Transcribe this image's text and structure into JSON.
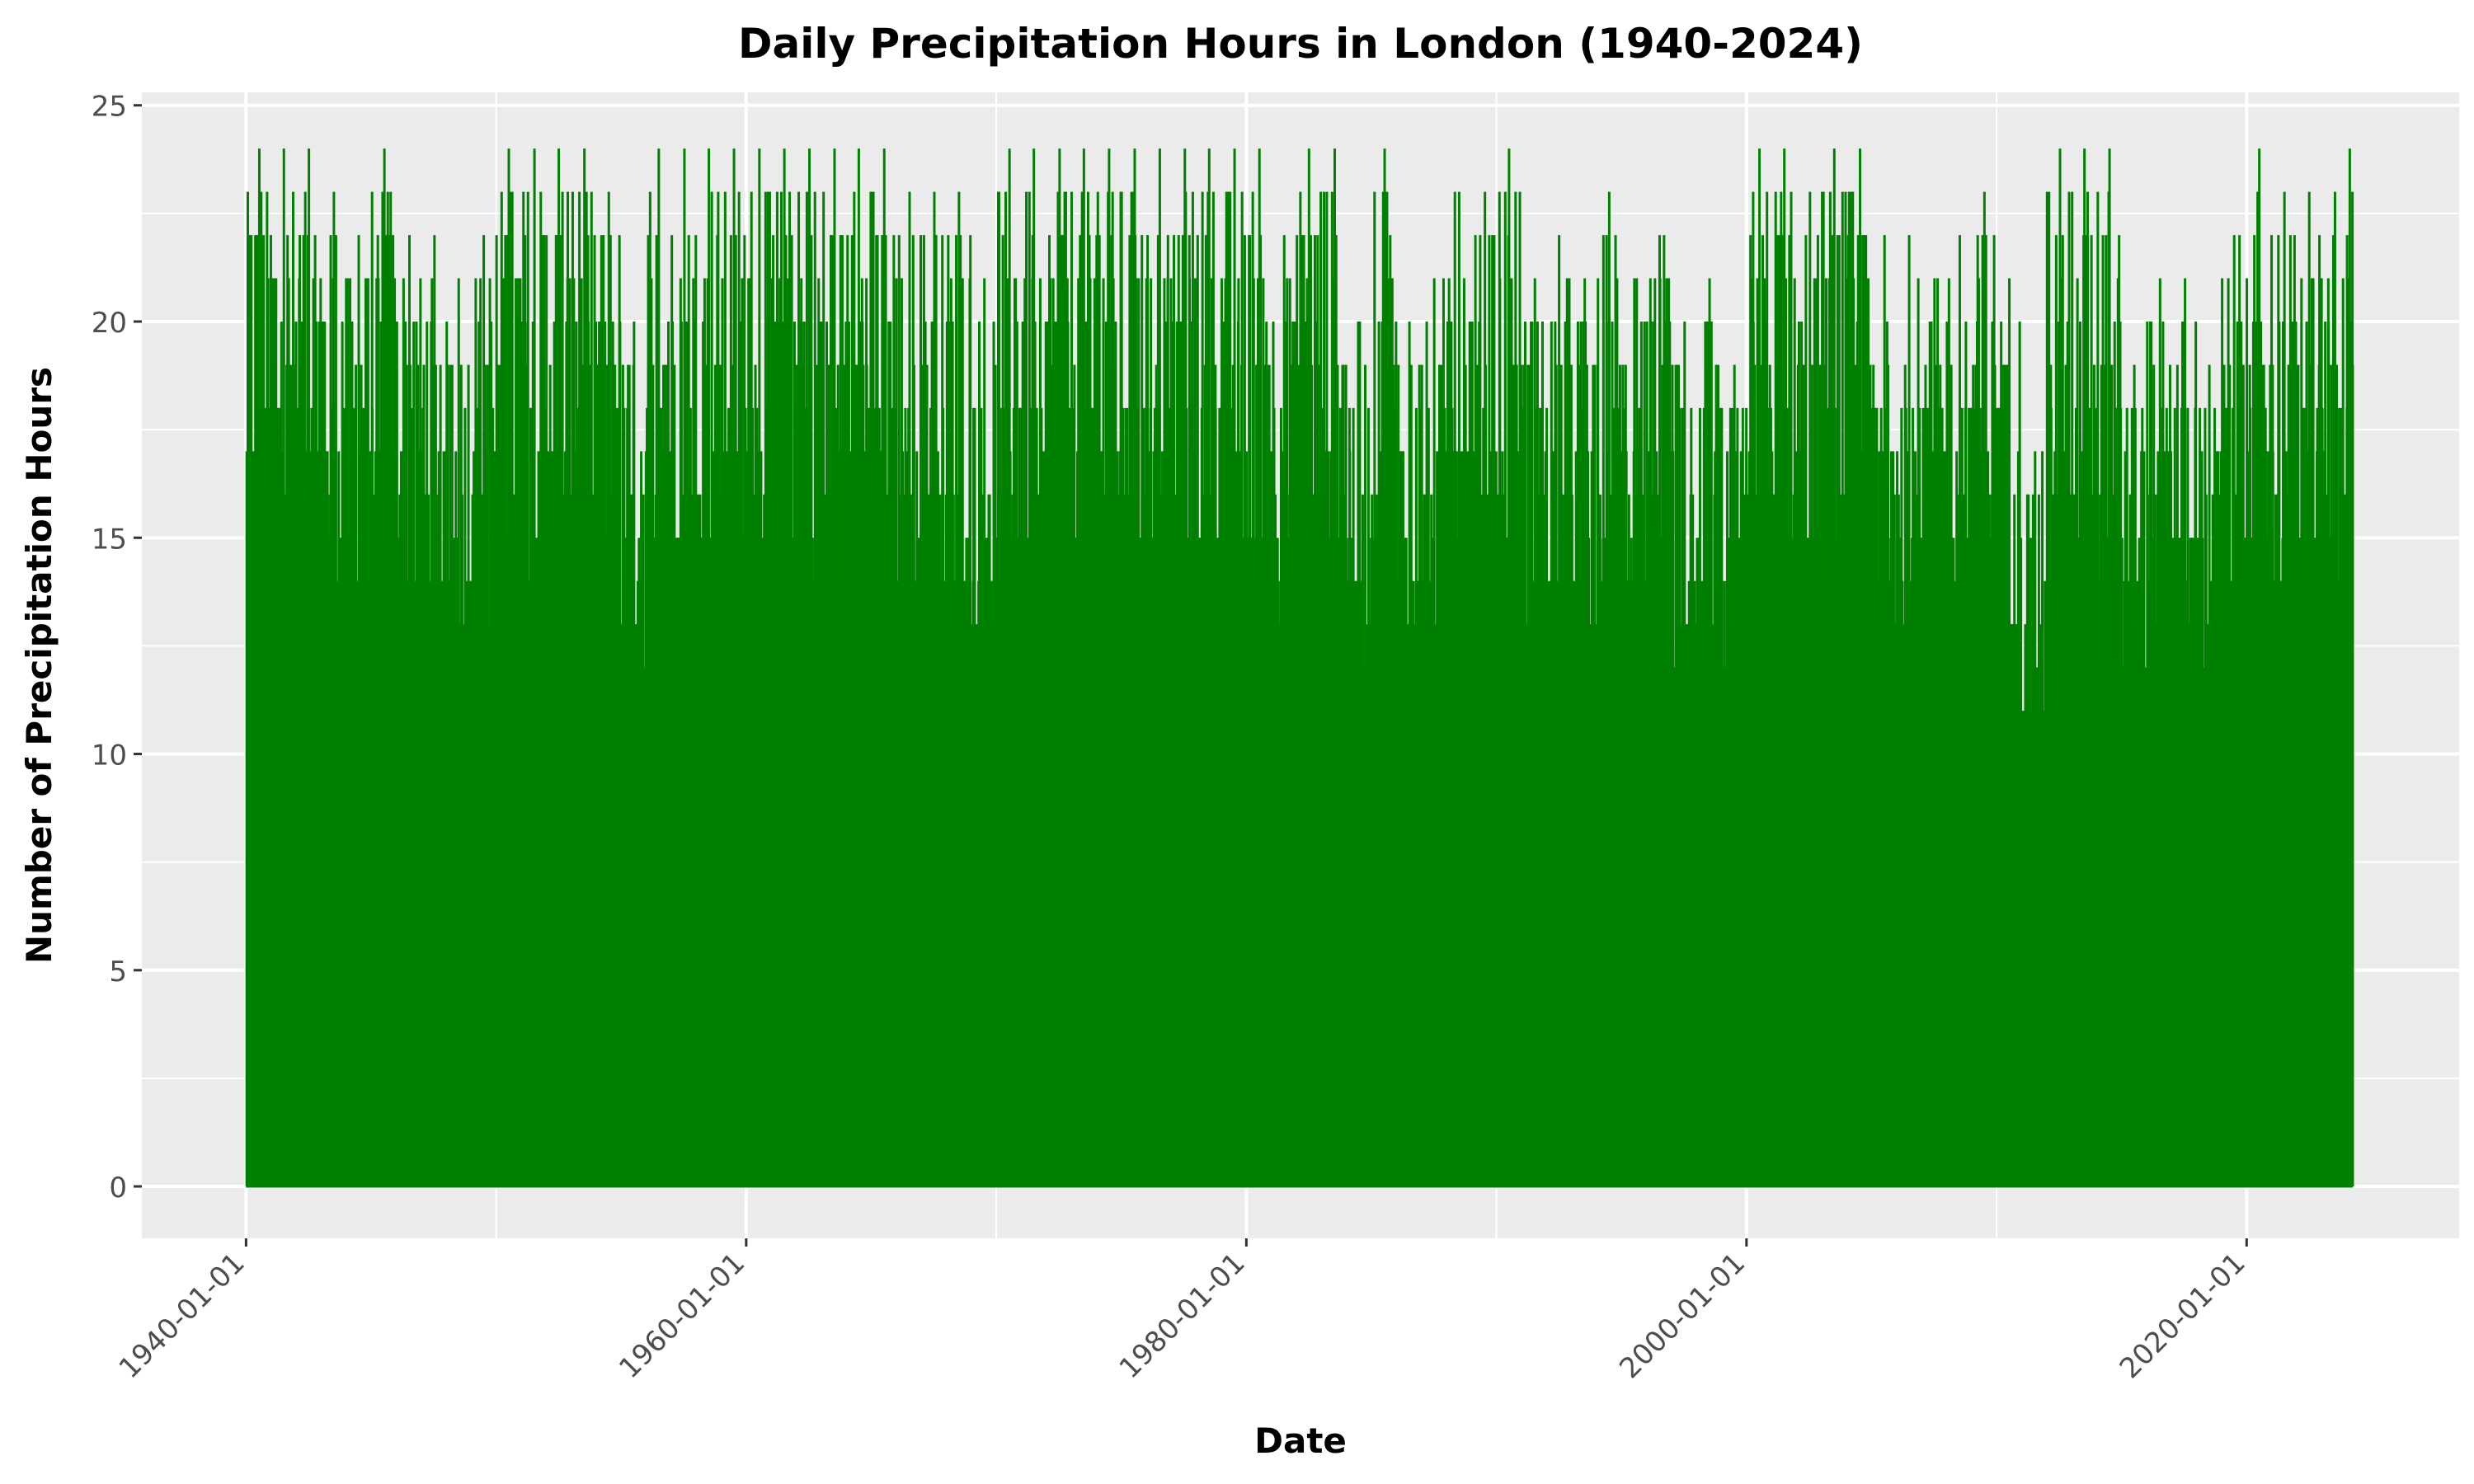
{
  "chart_data": {
    "type": "line",
    "title": "Daily Precipitation Hours in London (1940-2024)",
    "xlabel": "Date",
    "ylabel": "Number of Precipitation Hours",
    "x_range": [
      "1940-01-01",
      "2024-03-31"
    ],
    "xlim": [
      "1935-11-01",
      "2028-07-01"
    ],
    "ylim": [
      -1.2,
      25.3
    ],
    "x_ticks": [
      "1940-01-01",
      "1960-01-01",
      "1980-01-01",
      "2000-01-01",
      "2020-01-01"
    ],
    "y_ticks": [
      0,
      5,
      10,
      15,
      20,
      25
    ],
    "grid": true,
    "legend": "none",
    "colors": {
      "line": "#008000",
      "panel": "#ebebeb",
      "grid": "#ffffff"
    },
    "series": [
      {
        "note_values": "annual maximum daily precipitation hours (upper envelope of the daily series, values 0 to 24)",
        "x": [
          "1940",
          "1941",
          "1942",
          "1943",
          "1944",
          "1945",
          "1946",
          "1947",
          "1948",
          "1949",
          "1950",
          "1951",
          "1952",
          "1953",
          "1954",
          "1955",
          "1956",
          "1957",
          "1958",
          "1959",
          "1960",
          "1961",
          "1962",
          "1963",
          "1964",
          "1965",
          "1966",
          "1967",
          "1968",
          "1969",
          "1970",
          "1971",
          "1972",
          "1973",
          "1974",
          "1975",
          "1976",
          "1977",
          "1978",
          "1979",
          "1980",
          "1981",
          "1982",
          "1983",
          "1984",
          "1985",
          "1986",
          "1987",
          "1988",
          "1989",
          "1990",
          "1991",
          "1992",
          "1993",
          "1994",
          "1995",
          "1996",
          "1997",
          "1998",
          "1999",
          "2000",
          "2001",
          "2002",
          "2003",
          "2004",
          "2005",
          "2006",
          "2007",
          "2008",
          "2009",
          "2010",
          "2011",
          "2012",
          "2013",
          "2014",
          "2015",
          "2016",
          "2017",
          "2018",
          "2019",
          "2020",
          "2021",
          "2022",
          "2023",
          "2024"
        ],
        "values": [
          24,
          24,
          24,
          23,
          22,
          24,
          22,
          22,
          21,
          22,
          24,
          24,
          24,
          24,
          23,
          20,
          24,
          24,
          24,
          24,
          24,
          24,
          24,
          24,
          24,
          24,
          23,
          23,
          23,
          21,
          24,
          24,
          24,
          24,
          24,
          24,
          24,
          24,
          24,
          24,
          24,
          22,
          24,
          24,
          20,
          24,
          20,
          21,
          23,
          23,
          24,
          21,
          22,
          21,
          23,
          21,
          22,
          20,
          21,
          19,
          24,
          24,
          23,
          24,
          24,
          22,
          22,
          21,
          22,
          23,
          21,
          17,
          24,
          24,
          24,
          19,
          21,
          21,
          19,
          22,
          24,
          23,
          23,
          23,
          24
        ]
      }
    ]
  }
}
